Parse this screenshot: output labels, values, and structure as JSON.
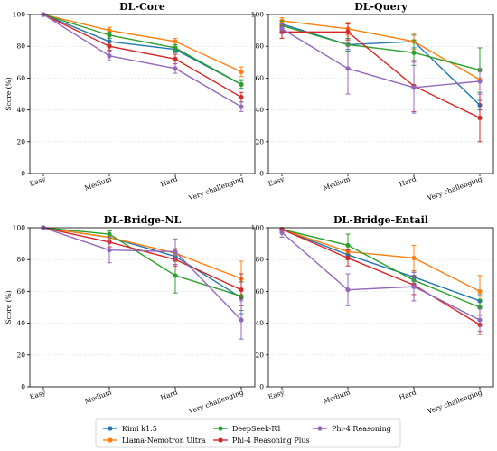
{
  "chart_data": [
    {
      "type": "line",
      "title": "DL-Core",
      "ylabel": "Score (%)",
      "categories": [
        "Easy",
        "Medium",
        "Hard",
        "Very challenging"
      ],
      "ylim": [
        0,
        100
      ],
      "yticks": [
        0,
        20,
        40,
        60,
        80,
        100
      ],
      "grid": true,
      "series": [
        {
          "name": "Kimi k1.5",
          "values": [
            100,
            83,
            78,
            56
          ],
          "errors": [
            0,
            2,
            2,
            2.5
          ]
        },
        {
          "name": "Llama-Nemotron Ultra",
          "values": [
            100,
            90,
            83,
            64
          ],
          "errors": [
            0,
            2,
            2,
            3
          ]
        },
        {
          "name": "DeepSeek-R1",
          "values": [
            100,
            87,
            79,
            56
          ],
          "errors": [
            0,
            2,
            2,
            3
          ]
        },
        {
          "name": "Phi-4 Reasoning Plus",
          "values": [
            100,
            80,
            72,
            48
          ],
          "errors": [
            0,
            2.5,
            3,
            3
          ]
        },
        {
          "name": "Phi-4 Reasoning",
          "values": [
            100,
            74,
            66,
            42
          ],
          "errors": [
            0,
            3,
            3,
            3
          ]
        }
      ]
    },
    {
      "type": "line",
      "title": "DL-Query",
      "ylabel": "",
      "categories": [
        "Easy",
        "Medium",
        "Hard",
        "Very challenging"
      ],
      "ylim": [
        0,
        100
      ],
      "yticks": [
        0,
        20,
        40,
        60,
        80,
        100
      ],
      "grid": true,
      "series": [
        {
          "name": "Kimi k1.5",
          "values": [
            94,
            81,
            83,
            43
          ],
          "errors": [
            2,
            3,
            4,
            3
          ]
        },
        {
          "name": "Llama-Nemotron Ultra",
          "values": [
            96,
            91,
            83,
            59
          ],
          "errors": [
            2,
            4,
            5,
            6
          ]
        },
        {
          "name": "DeepSeek-R1",
          "values": [
            93,
            81,
            76,
            65
          ],
          "errors": [
            3,
            4,
            8,
            14
          ]
        },
        {
          "name": "Phi-4 Reasoning Plus",
          "values": [
            89,
            89,
            55,
            35
          ],
          "errors": [
            4,
            5,
            16,
            15
          ]
        },
        {
          "name": "Phi-4 Reasoning",
          "values": [
            91,
            66,
            54,
            58
          ],
          "errors": [
            3,
            16,
            16,
            8
          ]
        }
      ]
    },
    {
      "type": "line",
      "title": "DL-Bridge-NL",
      "ylabel": "Score (%)",
      "categories": [
        "Easy",
        "Medium",
        "Hard",
        "Very challenging"
      ],
      "ylim": [
        0,
        100
      ],
      "yticks": [
        0,
        20,
        40,
        60,
        80,
        100
      ],
      "grid": true,
      "series": [
        {
          "name": "Kimi k1.5",
          "values": [
            100,
            94,
            82,
            56
          ],
          "errors": [
            0,
            2,
            3,
            10
          ]
        },
        {
          "name": "Llama-Nemotron Ultra",
          "values": [
            100,
            94,
            84,
            68
          ],
          "errors": [
            0,
            2,
            3,
            11
          ]
        },
        {
          "name": "DeepSeek-R1",
          "values": [
            100,
            96,
            70,
            57
          ],
          "errors": [
            0,
            2,
            11,
            9
          ]
        },
        {
          "name": "Phi-4 Reasoning Plus",
          "values": [
            100,
            91,
            80,
            61
          ],
          "errors": [
            0,
            3,
            4,
            10
          ]
        },
        {
          "name": "Phi-4 Reasoning",
          "values": [
            100,
            86,
            85,
            42
          ],
          "errors": [
            0,
            8,
            8,
            12
          ]
        }
      ]
    },
    {
      "type": "line",
      "title": "DL-Bridge-Entail",
      "ylabel": "",
      "categories": [
        "Easy",
        "Medium",
        "Hard",
        "Very challenging"
      ],
      "ylim": [
        0,
        100
      ],
      "yticks": [
        0,
        20,
        40,
        60,
        80,
        100
      ],
      "grid": true,
      "series": [
        {
          "name": "Kimi k1.5",
          "values": [
            99,
            83,
            69,
            54
          ],
          "errors": [
            1,
            3,
            4,
            4
          ]
        },
        {
          "name": "Llama-Nemotron Ultra",
          "values": [
            99,
            85,
            81,
            60
          ],
          "errors": [
            1,
            4,
            8,
            10
          ]
        },
        {
          "name": "DeepSeek-R1",
          "values": [
            99,
            89,
            67,
            50
          ],
          "errors": [
            1,
            7,
            5,
            5
          ]
        },
        {
          "name": "Phi-4 Reasoning Plus",
          "values": [
            99,
            81,
            64,
            39
          ],
          "errors": [
            1,
            5,
            6,
            6
          ]
        },
        {
          "name": "Phi-4 Reasoning",
          "values": [
            97,
            61,
            63,
            42
          ],
          "errors": [
            3,
            10,
            9,
            7
          ]
        }
      ]
    }
  ],
  "series_colors": {
    "Kimi k1.5": "#1f77b4",
    "Llama-Nemotron Ultra": "#ff7f0e",
    "DeepSeek-R1": "#2ca02c",
    "Phi-4 Reasoning Plus": "#d62728",
    "Phi-4 Reasoning": "#9467bd"
  },
  "legend": {
    "placement": "bottom-center",
    "entries": [
      "Kimi k1.5",
      "Llama-Nemotron Ultra",
      "DeepSeek-R1",
      "Phi-4 Reasoning Plus",
      "Phi-4 Reasoning"
    ]
  }
}
